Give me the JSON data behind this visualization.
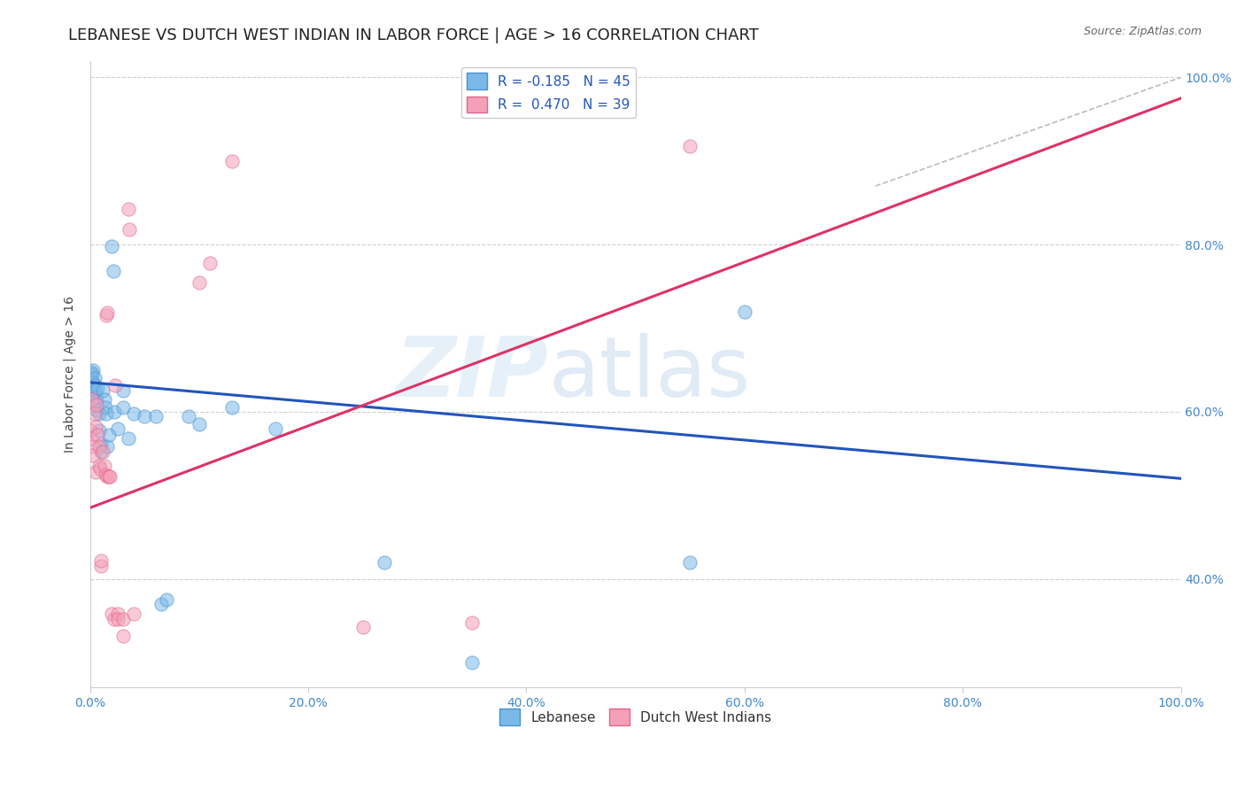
{
  "title": "LEBANESE VS DUTCH WEST INDIAN IN LABOR FORCE | AGE > 16 CORRELATION CHART",
  "source": "Source: ZipAtlas.com",
  "ylabel": "In Labor Force | Age > 16",
  "xmin": 0.0,
  "xmax": 1.0,
  "ymin": 0.27,
  "ymax": 1.02,
  "watermark_zip": "ZIP",
  "watermark_atlas": "atlas",
  "blue_scatter": [
    [
      0.0,
      0.645
    ],
    [
      0.001,
      0.648
    ],
    [
      0.001,
      0.638
    ],
    [
      0.002,
      0.645
    ],
    [
      0.002,
      0.628
    ],
    [
      0.003,
      0.65
    ],
    [
      0.003,
      0.635
    ],
    [
      0.003,
      0.622
    ],
    [
      0.004,
      0.64
    ],
    [
      0.004,
      0.632
    ],
    [
      0.005,
      0.618
    ],
    [
      0.005,
      0.625
    ],
    [
      0.006,
      0.612
    ],
    [
      0.006,
      0.602
    ],
    [
      0.007,
      0.628
    ],
    [
      0.008,
      0.598
    ],
    [
      0.008,
      0.578
    ],
    [
      0.01,
      0.552
    ],
    [
      0.01,
      0.562
    ],
    [
      0.012,
      0.625
    ],
    [
      0.013,
      0.615
    ],
    [
      0.014,
      0.605
    ],
    [
      0.015,
      0.598
    ],
    [
      0.016,
      0.558
    ],
    [
      0.017,
      0.572
    ],
    [
      0.02,
      0.798
    ],
    [
      0.021,
      0.768
    ],
    [
      0.022,
      0.6
    ],
    [
      0.025,
      0.58
    ],
    [
      0.03,
      0.625
    ],
    [
      0.03,
      0.605
    ],
    [
      0.035,
      0.568
    ],
    [
      0.04,
      0.598
    ],
    [
      0.05,
      0.595
    ],
    [
      0.06,
      0.595
    ],
    [
      0.065,
      0.37
    ],
    [
      0.07,
      0.375
    ],
    [
      0.09,
      0.595
    ],
    [
      0.1,
      0.585
    ],
    [
      0.13,
      0.605
    ],
    [
      0.17,
      0.58
    ],
    [
      0.27,
      0.42
    ],
    [
      0.55,
      0.42
    ],
    [
      0.35,
      0.3
    ],
    [
      0.6,
      0.72
    ]
  ],
  "pink_scatter": [
    [
      0.0,
      0.578
    ],
    [
      0.001,
      0.568
    ],
    [
      0.002,
      0.615
    ],
    [
      0.003,
      0.558
    ],
    [
      0.003,
      0.548
    ],
    [
      0.004,
      0.598
    ],
    [
      0.005,
      0.528
    ],
    [
      0.005,
      0.582
    ],
    [
      0.006,
      0.608
    ],
    [
      0.007,
      0.572
    ],
    [
      0.008,
      0.558
    ],
    [
      0.008,
      0.535
    ],
    [
      0.009,
      0.532
    ],
    [
      0.01,
      0.415
    ],
    [
      0.01,
      0.422
    ],
    [
      0.012,
      0.552
    ],
    [
      0.013,
      0.535
    ],
    [
      0.014,
      0.525
    ],
    [
      0.015,
      0.715
    ],
    [
      0.016,
      0.718
    ],
    [
      0.016,
      0.522
    ],
    [
      0.017,
      0.522
    ],
    [
      0.018,
      0.522
    ],
    [
      0.02,
      0.358
    ],
    [
      0.022,
      0.352
    ],
    [
      0.023,
      0.632
    ],
    [
      0.025,
      0.358
    ],
    [
      0.025,
      0.352
    ],
    [
      0.03,
      0.332
    ],
    [
      0.03,
      0.352
    ],
    [
      0.035,
      0.842
    ],
    [
      0.036,
      0.818
    ],
    [
      0.04,
      0.358
    ],
    [
      0.1,
      0.755
    ],
    [
      0.11,
      0.778
    ],
    [
      0.13,
      0.9
    ],
    [
      0.55,
      0.918
    ],
    [
      0.25,
      0.342
    ],
    [
      0.35,
      0.348
    ]
  ],
  "blue_line_x": [
    0.0,
    1.0
  ],
  "blue_line_y": [
    0.635,
    0.52
  ],
  "pink_line_x": [
    0.0,
    1.0
  ],
  "pink_line_y": [
    0.485,
    0.975
  ],
  "diag_line_x": [
    0.72,
    1.0
  ],
  "diag_line_y": [
    0.87,
    1.0
  ],
  "scatter_alpha": 0.55,
  "scatter_size": 120,
  "blue_color": "#7ab8e8",
  "pink_color": "#f4a0b8",
  "blue_scatter_edge": "#4a90d0",
  "pink_scatter_edge": "#e06888",
  "blue_line_color": "#2255bb",
  "pink_line_color": "#dd3366",
  "title_fontsize": 13,
  "axis_label_fontsize": 10,
  "tick_label_color": "#4488cc",
  "grid_color": "#bbbbbb",
  "bg_color": "#ffffff",
  "x_ticks": [
    0.0,
    0.2,
    0.4,
    0.6,
    0.8,
    1.0
  ],
  "y_ticks": [
    0.4,
    0.6,
    0.8,
    1.0
  ]
}
